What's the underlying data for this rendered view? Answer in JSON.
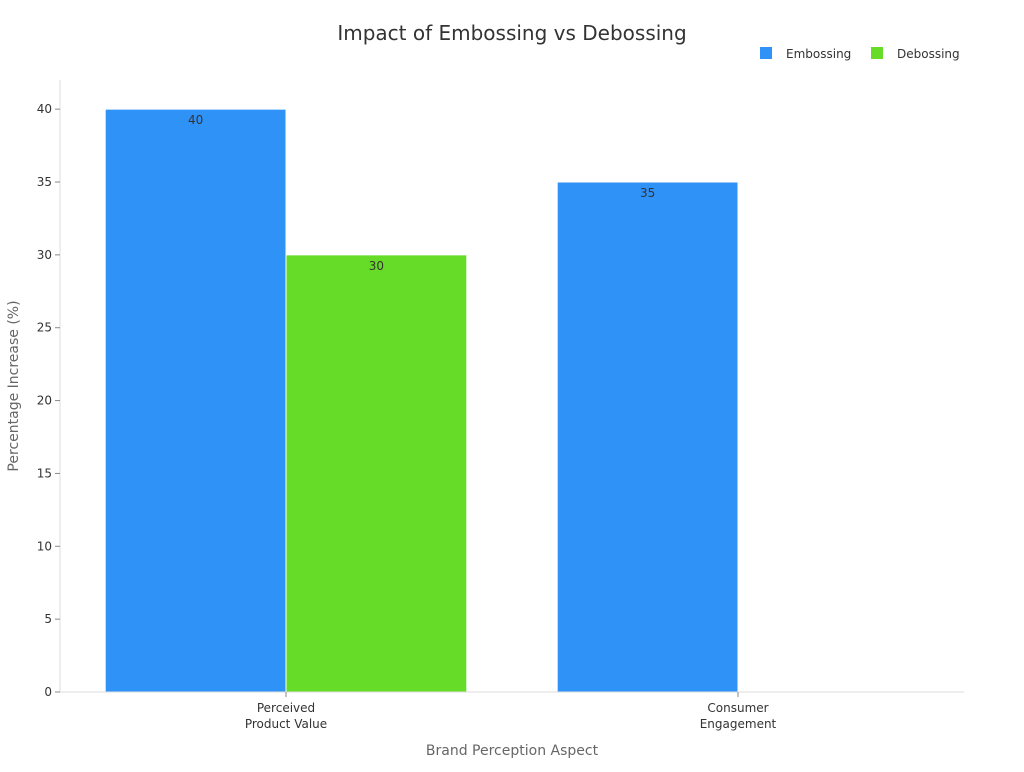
{
  "chart_data": {
    "type": "bar",
    "title": "Impact of Embossing vs Debossing",
    "xlabel": "Brand Perception Aspect",
    "ylabel": "Percentage Increase (%)",
    "categories": [
      [
        "Perceived",
        "Product Value"
      ],
      [
        "Consumer",
        "Engagement"
      ]
    ],
    "series": [
      {
        "name": "Embossing",
        "color": "#2f92f7",
        "values": [
          40,
          35
        ]
      },
      {
        "name": "Debossing",
        "color": "#66db28",
        "values": [
          30,
          null
        ]
      }
    ],
    "ylim": [
      0,
      42
    ],
    "yticks": [
      0,
      5,
      10,
      15,
      20,
      25,
      30,
      35,
      40
    ],
    "grid": false,
    "legend_position": "top-right",
    "data_labels": true
  }
}
